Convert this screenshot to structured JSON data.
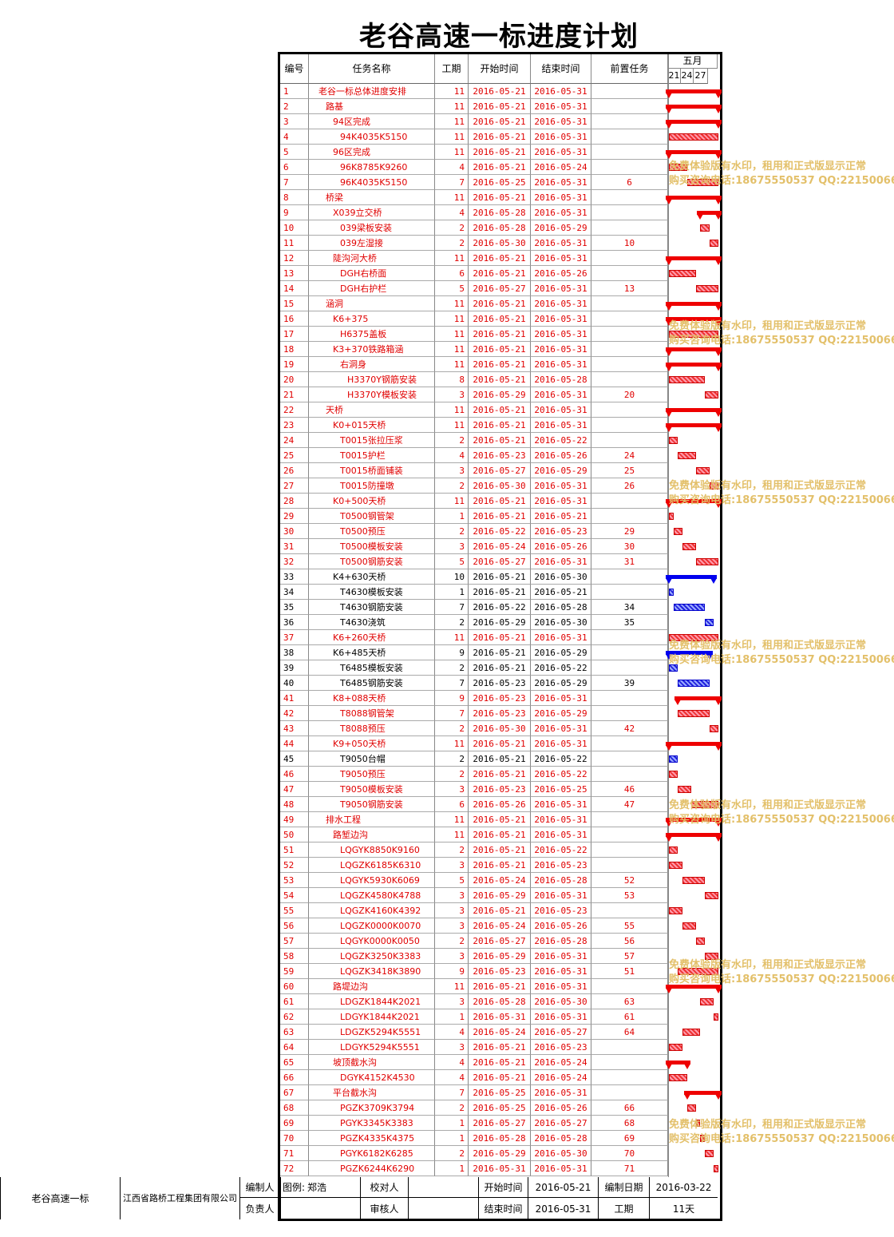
{
  "title": "老谷高速一标进度计划",
  "headers": {
    "num": "编号",
    "name": "任务名称",
    "dur": "工期",
    "start": "开始时间",
    "end": "结束时间",
    "pre": "前置任务",
    "month": "五月",
    "days": [
      "21",
      "24",
      "27"
    ]
  },
  "colors": {
    "critical": "#e00000",
    "normal": "#0000e0",
    "watermark": "#e3c06a"
  },
  "tasks": [
    [
      "1",
      "老谷一标总体进度安排",
      "11",
      "2016-05-21",
      "2016-05-31",
      "",
      0,
      "r",
      "s"
    ],
    [
      "2",
      "路基",
      "11",
      "2016-05-21",
      "2016-05-31",
      "",
      1,
      "r",
      "s"
    ],
    [
      "3",
      "94区完成",
      "11",
      "2016-05-21",
      "2016-05-31",
      "",
      2,
      "r",
      "s"
    ],
    [
      "4",
      "94K4035K5150",
      "11",
      "2016-05-21",
      "2016-05-31",
      "",
      3,
      "r",
      "t"
    ],
    [
      "5",
      "96区完成",
      "11",
      "2016-05-21",
      "2016-05-31",
      "",
      2,
      "r",
      "s"
    ],
    [
      "6",
      "96K8785K9260",
      "4",
      "2016-05-21",
      "2016-05-24",
      "",
      3,
      "r",
      "t"
    ],
    [
      "7",
      "96K4035K5150",
      "7",
      "2016-05-25",
      "2016-05-31",
      "6",
      3,
      "r",
      "t"
    ],
    [
      "8",
      "桥梁",
      "11",
      "2016-05-21",
      "2016-05-31",
      "",
      1,
      "r",
      "s"
    ],
    [
      "9",
      "X039立交桥",
      "4",
      "2016-05-28",
      "2016-05-31",
      "",
      2,
      "r",
      "s"
    ],
    [
      "10",
      "039梁板安装",
      "2",
      "2016-05-28",
      "2016-05-29",
      "",
      3,
      "r",
      "t"
    ],
    [
      "11",
      "039左湿接",
      "2",
      "2016-05-30",
      "2016-05-31",
      "10",
      3,
      "r",
      "t"
    ],
    [
      "12",
      "陡沟河大桥",
      "11",
      "2016-05-21",
      "2016-05-31",
      "",
      2,
      "r",
      "s"
    ],
    [
      "13",
      "DGH右桥面",
      "6",
      "2016-05-21",
      "2016-05-26",
      "",
      3,
      "r",
      "t"
    ],
    [
      "14",
      "DGH右护栏",
      "5",
      "2016-05-27",
      "2016-05-31",
      "13",
      3,
      "r",
      "t"
    ],
    [
      "15",
      "涵洞",
      "11",
      "2016-05-21",
      "2016-05-31",
      "",
      1,
      "r",
      "s"
    ],
    [
      "16",
      "K6+375",
      "11",
      "2016-05-21",
      "2016-05-31",
      "",
      2,
      "r",
      "s"
    ],
    [
      "17",
      "H6375盖板",
      "11",
      "2016-05-21",
      "2016-05-31",
      "",
      3,
      "r",
      "t"
    ],
    [
      "18",
      "K3+370铁路箱涵",
      "11",
      "2016-05-21",
      "2016-05-31",
      "",
      2,
      "r",
      "s"
    ],
    [
      "19",
      "右洞身",
      "11",
      "2016-05-21",
      "2016-05-31",
      "",
      3,
      "r",
      "s"
    ],
    [
      "20",
      "H3370Y钢筋安装",
      "8",
      "2016-05-21",
      "2016-05-28",
      "",
      4,
      "r",
      "t"
    ],
    [
      "21",
      "H3370Y模板安装",
      "3",
      "2016-05-29",
      "2016-05-31",
      "20",
      4,
      "r",
      "t"
    ],
    [
      "22",
      "天桥",
      "11",
      "2016-05-21",
      "2016-05-31",
      "",
      1,
      "r",
      "s"
    ],
    [
      "23",
      "K0+015天桥",
      "11",
      "2016-05-21",
      "2016-05-31",
      "",
      2,
      "r",
      "s"
    ],
    [
      "24",
      "T0015张拉压浆",
      "2",
      "2016-05-21",
      "2016-05-22",
      "",
      3,
      "r",
      "t"
    ],
    [
      "25",
      "T0015护栏",
      "4",
      "2016-05-23",
      "2016-05-26",
      "24",
      3,
      "r",
      "t"
    ],
    [
      "26",
      "T0015桥面铺装",
      "3",
      "2016-05-27",
      "2016-05-29",
      "25",
      3,
      "r",
      "t"
    ],
    [
      "27",
      "T0015防撞墩",
      "2",
      "2016-05-30",
      "2016-05-31",
      "26",
      3,
      "r",
      "t"
    ],
    [
      "28",
      "K0+500天桥",
      "11",
      "2016-05-21",
      "2016-05-31",
      "",
      2,
      "r",
      "s"
    ],
    [
      "29",
      "T0500钢管架",
      "1",
      "2016-05-21",
      "2016-05-21",
      "",
      3,
      "r",
      "t"
    ],
    [
      "30",
      "T0500预压",
      "2",
      "2016-05-22",
      "2016-05-23",
      "29",
      3,
      "r",
      "t"
    ],
    [
      "31",
      "T0500模板安装",
      "3",
      "2016-05-24",
      "2016-05-26",
      "30",
      3,
      "r",
      "t"
    ],
    [
      "32",
      "T0500钢筋安装",
      "5",
      "2016-05-27",
      "2016-05-31",
      "31",
      3,
      "r",
      "t"
    ],
    [
      "33",
      "K4+630天桥",
      "10",
      "2016-05-21",
      "2016-05-30",
      "",
      2,
      "k",
      "s"
    ],
    [
      "34",
      "T4630模板安装",
      "1",
      "2016-05-21",
      "2016-05-21",
      "",
      3,
      "k",
      "t"
    ],
    [
      "35",
      "T4630钢筋安装",
      "7",
      "2016-05-22",
      "2016-05-28",
      "34",
      3,
      "k",
      "t"
    ],
    [
      "36",
      "T4630浇筑",
      "2",
      "2016-05-29",
      "2016-05-30",
      "35",
      3,
      "k",
      "t"
    ],
    [
      "37",
      "K6+260天桥",
      "11",
      "2016-05-21",
      "2016-05-31",
      "",
      2,
      "r",
      "t"
    ],
    [
      "38",
      "K6+485天桥",
      "9",
      "2016-05-21",
      "2016-05-29",
      "",
      2,
      "k",
      "s"
    ],
    [
      "39",
      "T6485模板安装",
      "2",
      "2016-05-21",
      "2016-05-22",
      "",
      3,
      "k",
      "t"
    ],
    [
      "40",
      "T6485钢筋安装",
      "7",
      "2016-05-23",
      "2016-05-29",
      "39",
      3,
      "k",
      "t"
    ],
    [
      "41",
      "K8+088天桥",
      "9",
      "2016-05-23",
      "2016-05-31",
      "",
      2,
      "r",
      "s"
    ],
    [
      "42",
      "T8088钢管架",
      "7",
      "2016-05-23",
      "2016-05-29",
      "",
      3,
      "r",
      "t"
    ],
    [
      "43",
      "T8088预压",
      "2",
      "2016-05-30",
      "2016-05-31",
      "42",
      3,
      "r",
      "t"
    ],
    [
      "44",
      "K9+050天桥",
      "11",
      "2016-05-21",
      "2016-05-31",
      "",
      2,
      "r",
      "s"
    ],
    [
      "45",
      "T9050台帽",
      "2",
      "2016-05-21",
      "2016-05-22",
      "",
      3,
      "k",
      "t"
    ],
    [
      "46",
      "T9050预压",
      "2",
      "2016-05-21",
      "2016-05-22",
      "",
      3,
      "r",
      "t"
    ],
    [
      "47",
      "T9050模板安装",
      "3",
      "2016-05-23",
      "2016-05-25",
      "46",
      3,
      "r",
      "t"
    ],
    [
      "48",
      "T9050钢筋安装",
      "6",
      "2016-05-26",
      "2016-05-31",
      "47",
      3,
      "r",
      "t"
    ],
    [
      "49",
      "排水工程",
      "11",
      "2016-05-21",
      "2016-05-31",
      "",
      1,
      "r",
      "s"
    ],
    [
      "50",
      "路堑边沟",
      "11",
      "2016-05-21",
      "2016-05-31",
      "",
      2,
      "r",
      "s"
    ],
    [
      "51",
      "LQGYK8850K9160",
      "2",
      "2016-05-21",
      "2016-05-22",
      "",
      3,
      "r",
      "t"
    ],
    [
      "52",
      "LQGZK6185K6310",
      "3",
      "2016-05-21",
      "2016-05-23",
      "",
      3,
      "r",
      "t"
    ],
    [
      "53",
      "LQGYK5930K6069",
      "5",
      "2016-05-24",
      "2016-05-28",
      "52",
      3,
      "r",
      "t"
    ],
    [
      "54",
      "LQGZK4580K4788",
      "3",
      "2016-05-29",
      "2016-05-31",
      "53",
      3,
      "r",
      "t"
    ],
    [
      "55",
      "LQGZK4160K4392",
      "3",
      "2016-05-21",
      "2016-05-23",
      "",
      3,
      "r",
      "t"
    ],
    [
      "56",
      "LQGZK0000K0070",
      "3",
      "2016-05-24",
      "2016-05-26",
      "55",
      3,
      "r",
      "t"
    ],
    [
      "57",
      "LQGYK0000K0050",
      "2",
      "2016-05-27",
      "2016-05-28",
      "56",
      3,
      "r",
      "t"
    ],
    [
      "58",
      "LQGZK3250K3383",
      "3",
      "2016-05-29",
      "2016-05-31",
      "57",
      3,
      "r",
      "t"
    ],
    [
      "59",
      "LQGZK3418K3890",
      "9",
      "2016-05-23",
      "2016-05-31",
      "51",
      3,
      "r",
      "t"
    ],
    [
      "60",
      "路堤边沟",
      "11",
      "2016-05-21",
      "2016-05-31",
      "",
      2,
      "r",
      "s"
    ],
    [
      "61",
      "LDGZK1844K2021",
      "3",
      "2016-05-28",
      "2016-05-30",
      "63",
      3,
      "r",
      "t"
    ],
    [
      "62",
      "LDGYK1844K2021",
      "1",
      "2016-05-31",
      "2016-05-31",
      "61",
      3,
      "r",
      "t"
    ],
    [
      "63",
      "LDGZK5294K5551",
      "4",
      "2016-05-24",
      "2016-05-27",
      "64",
      3,
      "r",
      "t"
    ],
    [
      "64",
      "LDGYK5294K5551",
      "3",
      "2016-05-21",
      "2016-05-23",
      "",
      3,
      "r",
      "t"
    ],
    [
      "65",
      "坡顶截水沟",
      "4",
      "2016-05-21",
      "2016-05-24",
      "",
      2,
      "r",
      "s"
    ],
    [
      "66",
      "DGYK4152K4530",
      "4",
      "2016-05-21",
      "2016-05-24",
      "",
      3,
      "r",
      "t"
    ],
    [
      "67",
      "平台截水沟",
      "7",
      "2016-05-25",
      "2016-05-31",
      "",
      2,
      "r",
      "s"
    ],
    [
      "68",
      "PGZK3709K3794",
      "2",
      "2016-05-25",
      "2016-05-26",
      "66",
      3,
      "r",
      "t"
    ],
    [
      "69",
      "PGYK3345K3383",
      "1",
      "2016-05-27",
      "2016-05-27",
      "68",
      3,
      "r",
      "t"
    ],
    [
      "70",
      "PGZK4335K4375",
      "1",
      "2016-05-28",
      "2016-05-28",
      "69",
      3,
      "r",
      "t"
    ],
    [
      "71",
      "PGYK6182K6285",
      "2",
      "2016-05-29",
      "2016-05-30",
      "70",
      3,
      "r",
      "t"
    ],
    [
      "72",
      "PGZK6244K6290",
      "1",
      "2016-05-31",
      "2016-05-31",
      "71",
      3,
      "r",
      "t"
    ]
  ],
  "watermark": {
    "line1": "免费体验版有水印，租用和正式版显示正常",
    "line2": "购买咨询电话:18675550537 QQ:22150066"
  },
  "footer": {
    "project": "老谷高速一标",
    "company": "江西省路桥工程集团有限公司",
    "editor_label": "编制人",
    "editor_name": "郑浩",
    "checker_label": "校对人",
    "owner_label": "负责人",
    "reviewer_label": "审核人",
    "legend_label": "图例:",
    "start_label": "开始时间",
    "start_value": "2016-05-21",
    "end_label": "结束时间",
    "end_value": "2016-05-31",
    "compile_label": "编制日期",
    "compile_value": "2016-03-22",
    "dur_label": "工期",
    "dur_value": "11天"
  }
}
